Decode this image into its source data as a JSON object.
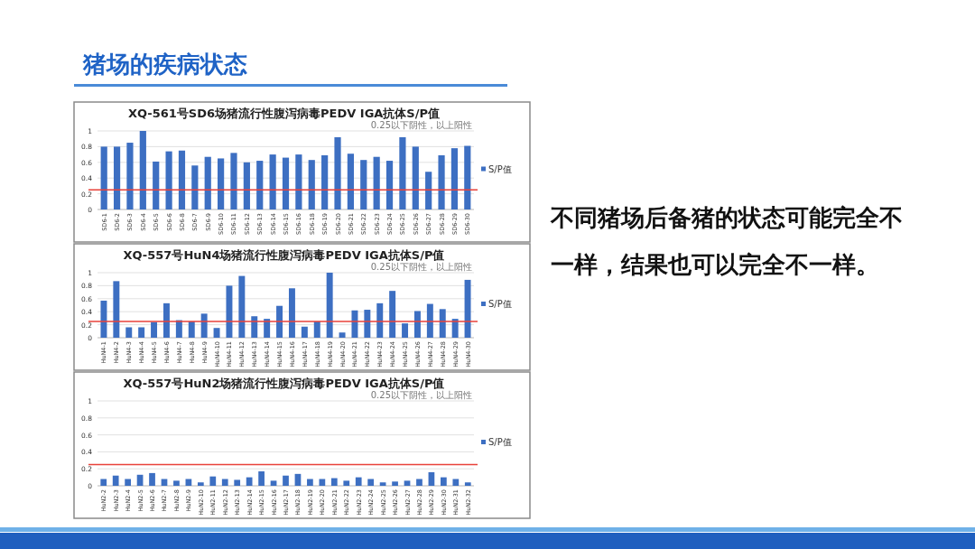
{
  "chart_data": [
    {
      "type": "bar",
      "title": "XQ-561号SD6场猪流行性腹泻病毒PEDV IGA抗体S/P值",
      "annotations": [
        "0.25以下阴性，以上阳性"
      ],
      "categories": [
        "SD6-1",
        "SD6-2",
        "SD6-3",
        "SD6-4",
        "SD6-5",
        "SD6-6",
        "SD6-8",
        "SD6-7",
        "SD6-9",
        "SD6-10",
        "SD6-11",
        "SD6-12",
        "SD6-13",
        "SD6-14",
        "SD6-15",
        "SD6-16",
        "SD6-18",
        "SD6-19",
        "SD6-20",
        "SD6-21",
        "SD6-22",
        "SD6-23",
        "SD6-24",
        "SD6-25",
        "SD6-26",
        "SD6-27",
        "SD6-28",
        "SD6-29",
        "SD6-30"
      ],
      "series": [
        {
          "name": "S/P值",
          "color": "#3d6fc2",
          "values": [
            0.8,
            0.8,
            0.85,
            1.0,
            0.61,
            0.74,
            0.75,
            0.56,
            0.67,
            0.65,
            0.72,
            0.6,
            0.62,
            0.7,
            0.66,
            0.7,
            0.63,
            0.69,
            0.92,
            0.71,
            0.63,
            0.67,
            0.62,
            0.92,
            0.8,
            0.48,
            0.69,
            0.78,
            0.81
          ]
        }
      ],
      "ylim": [
        0,
        1
      ],
      "yticks": [
        0,
        0.2,
        0.4,
        0.6,
        0.8,
        1
      ],
      "grid": "y",
      "legend": "right",
      "ref_lines": [
        {
          "axis": "y",
          "value": 0.25,
          "color": "#e8423a"
        }
      ]
    },
    {
      "type": "bar",
      "title": "XQ-557号HuN4场猪流行性腹泻病毒PEDV IGA抗体S/P值",
      "annotations": [
        "0.25以下阴性，以上阳性"
      ],
      "categories": [
        "HuN4-1",
        "HuN4-2",
        "HuN4-3",
        "HuN4-4",
        "HuN4-5",
        "HuN4-6",
        "HuN4-7",
        "HuN4-8",
        "HuN4-9",
        "HuN4-10",
        "HuN4-11",
        "HuN4-12",
        "HuN4-13",
        "HuN4-14",
        "HuN4-15",
        "HuN4-16",
        "HuN4-17",
        "HuN4-18",
        "HuN4-19",
        "HuN4-20",
        "HuN4-21",
        "HuN4-22",
        "HuN4-23",
        "HuN4-24",
        "HuN4-25",
        "HuN4-26",
        "HuN4-27",
        "HuN4-28",
        "HuN4-29",
        "HuN4-30"
      ],
      "series": [
        {
          "name": "S/P值",
          "color": "#3d6fc2",
          "values": [
            0.57,
            0.87,
            0.16,
            0.16,
            0.24,
            0.53,
            0.27,
            0.25,
            0.37,
            0.15,
            0.8,
            0.95,
            0.33,
            0.29,
            0.49,
            0.76,
            0.17,
            0.25,
            1.0,
            0.08,
            0.42,
            0.43,
            0.53,
            0.72,
            0.22,
            0.41,
            0.52,
            0.44,
            0.29,
            0.89
          ]
        }
      ],
      "ylim": [
        0,
        1
      ],
      "yticks": [
        0,
        0.2,
        0.4,
        0.6,
        0.8,
        1
      ],
      "grid": "y",
      "legend": "right",
      "ref_lines": [
        {
          "axis": "y",
          "value": 0.25,
          "color": "#e8423a"
        }
      ]
    },
    {
      "type": "bar",
      "title": "XQ-557号HuN2场猪流行性腹泻病毒PEDV IGA抗体S/P值",
      "annotations": [
        "0.25以下阴性，以上阳性"
      ],
      "categories": [
        "HuN2-2",
        "HuN2-3",
        "HuN2-4",
        "HuN2-5",
        "HuN2-6",
        "HuN2-7",
        "HuN2-8",
        "HuN2-9",
        "HuN2-10",
        "HuN2-11",
        "HuN2-12",
        "HuN2-13",
        "HuN2-14",
        "HuN2-15",
        "HuN2-16",
        "HuN2-17",
        "HuN2-18",
        "HuN2-19",
        "HuN2-20",
        "HuN2-21",
        "HuN2-22",
        "HuN2-23",
        "HuN2-24",
        "HuN2-25",
        "HuN2-26",
        "HuN2-27",
        "HuN2-28",
        "HuN2-29",
        "HuN2-30",
        "HuN2-31",
        "HuN2-32"
      ],
      "series": [
        {
          "name": "S/P值",
          "color": "#3d6fc2",
          "values": [
            0.08,
            0.12,
            0.08,
            0.13,
            0.15,
            0.08,
            0.06,
            0.08,
            0.04,
            0.11,
            0.08,
            0.07,
            0.1,
            0.17,
            0.06,
            0.12,
            0.14,
            0.08,
            0.08,
            0.09,
            0.06,
            0.1,
            0.08,
            0.04,
            0.05,
            0.06,
            0.08,
            0.16,
            0.1,
            0.08,
            0.04
          ]
        }
      ],
      "ylim": [
        0,
        1
      ],
      "yticks": [
        0,
        0.2,
        0.4,
        0.6,
        0.8,
        1
      ],
      "grid": "y",
      "legend": "right",
      "ref_lines": [
        {
          "axis": "y",
          "value": 0.25,
          "color": "#e8423a"
        }
      ]
    },
    {
      "type": "other",
      "title": "猪场的疾病状态",
      "annotations": [
        "不同猪场后备猪的状态可能完全不一样，结果也可以完全不一样。"
      ]
    }
  ]
}
